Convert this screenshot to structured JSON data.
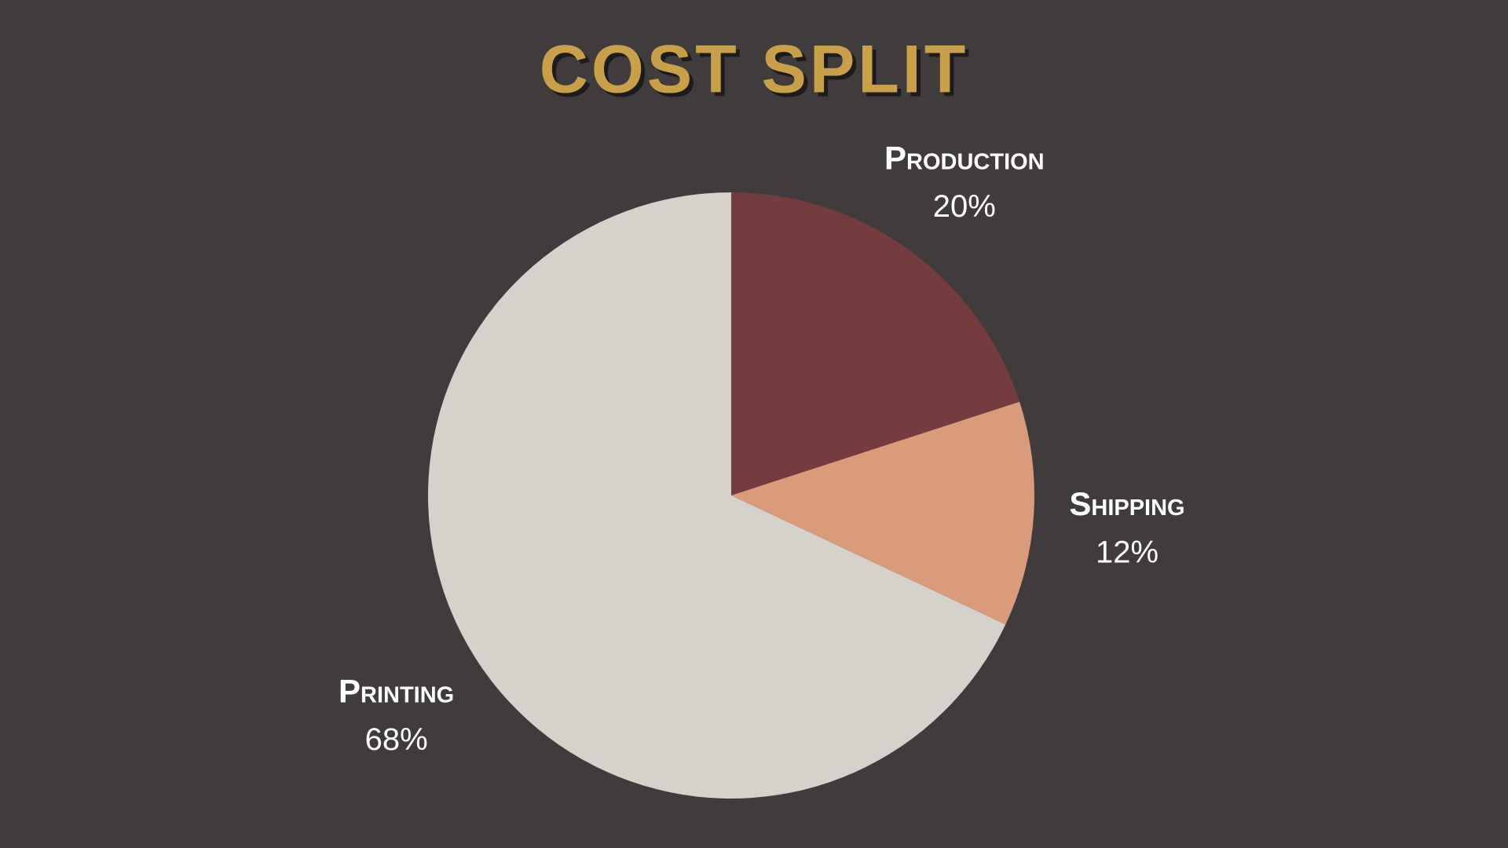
{
  "chart_data": {
    "type": "pie",
    "title": "COST SPLIT",
    "categories": [
      "Production",
      "Shipping",
      "Printing"
    ],
    "values": [
      20,
      12,
      68
    ],
    "value_labels": [
      "20%",
      "12%",
      "68%"
    ],
    "colors": [
      "#743c3e",
      "#d99b7a",
      "#d5d2cb"
    ]
  }
}
